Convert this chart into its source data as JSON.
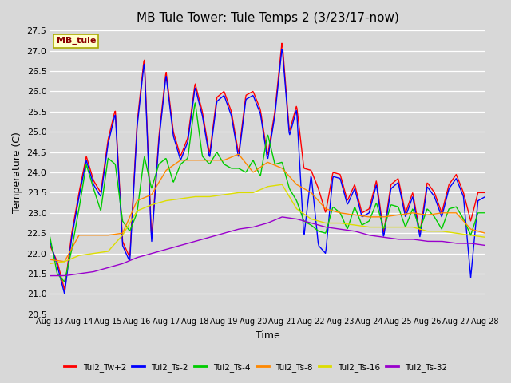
{
  "title": "MB Tule Tower: Tule Temps 2 (3/23/17-now)",
  "xlabel": "Time",
  "ylabel": "Temperature (C)",
  "ylim": [
    20.5,
    27.5
  ],
  "bg_color": "#d8d8d8",
  "series_colors": {
    "Tul2_Tw+2": "#ff0000",
    "Tul2_Ts-2": "#0000ff",
    "Tul2_Ts-4": "#00cc00",
    "Tul2_Ts-8": "#ff8800",
    "Tul2_Ts-16": "#dddd00",
    "Tul2_Ts-32": "#9900cc"
  },
  "x_tick_labels": [
    "Aug 13",
    "Aug 14",
    "Aug 15",
    "Aug 16",
    "Aug 17",
    "Aug 18",
    "Aug 19",
    "Aug 20",
    "Aug 21",
    "Aug 22",
    "Aug 23",
    "Aug 24",
    "Aug 25",
    "Aug 26",
    "Aug 27",
    "Aug 28"
  ],
  "y_ticks": [
    20.5,
    21.0,
    21.5,
    22.0,
    22.5,
    23.0,
    23.5,
    24.0,
    24.5,
    25.0,
    25.5,
    26.0,
    26.5,
    27.0,
    27.5
  ],
  "line_width": 1.0,
  "red_ctrl_x": [
    0,
    0.25,
    0.5,
    0.75,
    1.0,
    1.25,
    1.5,
    1.75,
    2.0,
    2.25,
    2.5,
    2.75,
    3.0,
    3.25,
    3.5,
    3.75,
    4.0,
    4.25,
    4.5,
    4.75,
    5.0,
    5.25,
    5.5,
    5.75,
    6.0,
    6.25,
    6.5,
    6.75,
    7.0,
    7.25,
    7.5,
    7.75,
    8.0,
    8.25,
    8.5,
    8.75,
    9.0,
    9.25,
    9.5,
    9.75,
    10.0,
    10.25,
    10.5,
    10.75,
    11.0,
    11.25,
    11.5,
    11.75,
    12.0,
    12.25,
    12.5,
    12.75,
    13.0,
    13.25,
    13.5,
    13.75,
    14.0,
    14.25,
    14.5,
    14.75,
    15.0
  ],
  "red_ctrl_y": [
    22.2,
    21.8,
    21.1,
    22.5,
    23.5,
    24.4,
    23.8,
    23.5,
    24.8,
    25.55,
    22.3,
    21.9,
    25.2,
    26.85,
    22.35,
    24.85,
    26.5,
    25.0,
    24.4,
    24.85,
    26.2,
    25.5,
    24.45,
    25.85,
    26.0,
    25.5,
    24.45,
    25.9,
    26.0,
    25.55,
    24.4,
    25.5,
    27.25,
    25.0,
    25.65,
    24.1,
    24.05,
    23.6,
    23.0,
    24.0,
    23.95,
    23.3,
    23.7,
    23.0,
    23.1,
    23.8,
    22.5,
    23.7,
    23.85,
    23.0,
    23.5,
    22.5,
    23.75,
    23.5,
    23.0,
    23.7,
    23.95,
    23.5,
    22.8,
    23.5,
    23.5
  ],
  "blue_ctrl_x": [
    0,
    0.25,
    0.5,
    0.75,
    1.0,
    1.25,
    1.5,
    1.75,
    2.0,
    2.25,
    2.5,
    2.75,
    3.0,
    3.25,
    3.5,
    3.75,
    4.0,
    4.25,
    4.5,
    4.75,
    5.0,
    5.25,
    5.5,
    5.75,
    6.0,
    6.25,
    6.5,
    6.75,
    7.0,
    7.25,
    7.5,
    7.75,
    8.0,
    8.25,
    8.5,
    8.75,
    9.0,
    9.25,
    9.5,
    9.75,
    10.0,
    10.25,
    10.5,
    10.75,
    11.0,
    11.25,
    11.5,
    11.75,
    12.0,
    12.25,
    12.5,
    12.75,
    13.0,
    13.25,
    13.5,
    13.75,
    14.0,
    14.25,
    14.5,
    14.75,
    15.0
  ],
  "blue_ctrl_y": [
    22.3,
    21.7,
    21.0,
    22.4,
    23.4,
    24.3,
    23.7,
    23.4,
    24.7,
    25.45,
    22.2,
    21.8,
    25.1,
    26.75,
    22.25,
    24.75,
    26.4,
    24.9,
    24.3,
    24.75,
    26.1,
    25.4,
    24.35,
    25.75,
    25.9,
    25.4,
    24.35,
    25.8,
    25.9,
    25.45,
    24.3,
    25.4,
    27.1,
    24.9,
    25.55,
    22.4,
    23.95,
    22.2,
    22.0,
    23.9,
    23.85,
    23.2,
    23.6,
    22.9,
    23.0,
    23.7,
    22.4,
    23.6,
    23.75,
    22.9,
    23.4,
    22.4,
    23.65,
    23.4,
    22.9,
    23.6,
    23.85,
    23.4,
    21.4,
    23.3,
    23.4
  ],
  "green_ctrl_x": [
    0,
    0.25,
    0.5,
    0.75,
    1.0,
    1.25,
    1.5,
    1.75,
    2.0,
    2.25,
    2.5,
    2.75,
    3.0,
    3.25,
    3.5,
    3.75,
    4.0,
    4.25,
    4.5,
    4.75,
    5.0,
    5.25,
    5.5,
    5.75,
    6.0,
    6.25,
    6.5,
    6.75,
    7.0,
    7.25,
    7.5,
    7.75,
    8.0,
    8.25,
    8.5,
    8.75,
    9.0,
    9.25,
    9.5,
    9.75,
    10.0,
    10.25,
    10.5,
    10.75,
    11.0,
    11.25,
    11.5,
    11.75,
    12.0,
    12.25,
    12.5,
    12.75,
    13.0,
    13.25,
    13.5,
    13.75,
    14.0,
    14.25,
    14.5,
    14.75,
    15.0
  ],
  "green_ctrl_y": [
    22.4,
    21.5,
    21.3,
    22.1,
    23.1,
    24.2,
    23.6,
    23.05,
    24.35,
    24.2,
    22.8,
    22.55,
    23.0,
    24.4,
    23.6,
    24.2,
    24.35,
    23.75,
    24.2,
    24.35,
    25.75,
    24.4,
    24.2,
    24.5,
    24.2,
    24.1,
    24.1,
    24.0,
    24.3,
    23.9,
    24.95,
    24.2,
    24.25,
    23.6,
    23.3,
    22.8,
    22.7,
    22.55,
    22.5,
    23.15,
    23.0,
    22.6,
    23.15,
    22.7,
    22.8,
    23.25,
    22.6,
    23.2,
    23.15,
    22.65,
    23.1,
    22.6,
    23.1,
    22.9,
    22.6,
    23.1,
    23.15,
    22.85,
    22.45,
    23.0,
    23.0
  ],
  "orange_ctrl_x": [
    0,
    0.5,
    1.0,
    1.5,
    2.0,
    2.5,
    3.0,
    3.5,
    4.0,
    4.5,
    5.0,
    5.5,
    6.0,
    6.5,
    7.0,
    7.5,
    8.0,
    8.5,
    9.0,
    9.5,
    10.0,
    10.5,
    11.0,
    11.5,
    12.0,
    12.5,
    13.0,
    13.5,
    14.0,
    14.5,
    15.0
  ],
  "orange_ctrl_y": [
    21.85,
    21.8,
    22.45,
    22.45,
    22.45,
    22.5,
    23.3,
    23.45,
    24.05,
    24.3,
    24.3,
    24.3,
    24.3,
    24.45,
    24.0,
    24.25,
    24.1,
    23.7,
    23.5,
    23.1,
    23.0,
    22.95,
    22.9,
    22.9,
    22.95,
    23.0,
    22.95,
    23.0,
    23.0,
    22.6,
    22.5
  ],
  "yellow_ctrl_x": [
    0,
    0.5,
    1.0,
    1.5,
    2.0,
    2.5,
    3.0,
    3.5,
    4.0,
    4.5,
    5.0,
    5.5,
    6.0,
    6.5,
    7.0,
    7.5,
    8.0,
    8.5,
    9.0,
    9.5,
    10.0,
    10.5,
    11.0,
    11.5,
    12.0,
    12.5,
    13.0,
    13.5,
    14.0,
    14.5,
    15.0
  ],
  "yellow_ctrl_y": [
    21.75,
    21.8,
    21.95,
    22.0,
    22.05,
    22.45,
    23.05,
    23.2,
    23.3,
    23.35,
    23.4,
    23.4,
    23.45,
    23.5,
    23.5,
    23.65,
    23.7,
    23.1,
    22.85,
    22.75,
    22.75,
    22.7,
    22.65,
    22.65,
    22.65,
    22.65,
    22.55,
    22.55,
    22.5,
    22.45,
    22.4
  ],
  "purple_ctrl_x": [
    0,
    0.5,
    1.0,
    1.5,
    2.0,
    2.5,
    3.0,
    3.5,
    4.0,
    4.5,
    5.0,
    5.5,
    6.0,
    6.5,
    7.0,
    7.5,
    8.0,
    8.5,
    9.0,
    9.5,
    10.0,
    10.5,
    11.0,
    11.5,
    12.0,
    12.5,
    13.0,
    13.5,
    14.0,
    14.5,
    15.0
  ],
  "purple_ctrl_y": [
    21.45,
    21.45,
    21.5,
    21.55,
    21.65,
    21.75,
    21.9,
    22.0,
    22.1,
    22.2,
    22.3,
    22.4,
    22.5,
    22.6,
    22.65,
    22.75,
    22.9,
    22.85,
    22.75,
    22.65,
    22.6,
    22.55,
    22.45,
    22.4,
    22.35,
    22.35,
    22.3,
    22.3,
    22.25,
    22.25,
    22.2
  ]
}
